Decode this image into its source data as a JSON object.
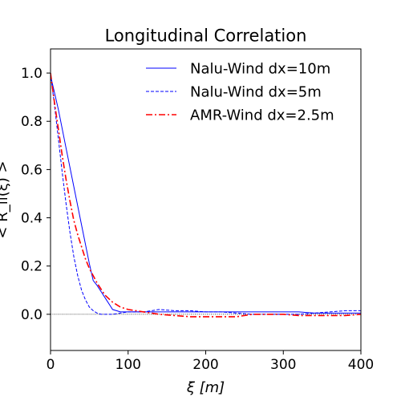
{
  "chart_data": {
    "type": "line",
    "title": "Longitudinal Correlation",
    "xlabel": "ξ [m]",
    "ylabel": "< R_ii(ξ) >",
    "xlim": [
      0,
      400
    ],
    "ylim": [
      -0.15,
      1.1
    ],
    "xticks": [
      0,
      100,
      200,
      300,
      400
    ],
    "yticks": [
      0.0,
      0.2,
      0.4,
      0.6,
      0.8,
      1.0
    ],
    "xtick_labels": [
      "0",
      "100",
      "200",
      "300",
      "400"
    ],
    "ytick_labels": [
      "0.0",
      "0.2",
      "0.4",
      "0.6",
      "0.8",
      "1.0"
    ],
    "reference_line": {
      "y": 0.0,
      "style": "dotted",
      "color": "#000000"
    },
    "legend": {
      "position": "top-right",
      "frame": false
    },
    "grid": false,
    "series": [
      {
        "name": "Nalu-Wind dx=10m",
        "color": "#0000ff",
        "style": "solid",
        "x": [
          0,
          10,
          20,
          30,
          40,
          50,
          55,
          60,
          70,
          80,
          90,
          100,
          120,
          140,
          160,
          180,
          200,
          220,
          240,
          260,
          280,
          300,
          320,
          340,
          360,
          380,
          400
        ],
        "y": [
          0.99,
          0.85,
          0.69,
          0.53,
          0.37,
          0.21,
          0.14,
          0.12,
          0.07,
          0.02,
          0.01,
          0.01,
          0.01,
          0.01,
          0.01,
          0.01,
          0.01,
          0.01,
          0.01,
          0.01,
          0.01,
          0.01,
          0.01,
          0.005,
          0.005,
          0.005,
          0.005
        ]
      },
      {
        "name": "Nalu-Wind dx=5m",
        "color": "#0000ff",
        "style": "dashed",
        "x": [
          0,
          5,
          10,
          15,
          20,
          25,
          30,
          35,
          40,
          45,
          50,
          55,
          60,
          65,
          70,
          75,
          80,
          90,
          100,
          120,
          140,
          160,
          180,
          200,
          220,
          240,
          260,
          280,
          300,
          320,
          340,
          360,
          380,
          400
        ],
        "y": [
          1.0,
          0.87,
          0.73,
          0.59,
          0.46,
          0.34,
          0.24,
          0.16,
          0.1,
          0.06,
          0.03,
          0.015,
          0.005,
          0.0,
          0.0,
          0.0,
          0.0,
          0.005,
          0.01,
          0.01,
          0.02,
          0.015,
          0.015,
          0.01,
          0.01,
          0.005,
          0.0,
          0.0,
          0.0,
          0.0,
          0.005,
          0.01,
          0.015,
          0.015
        ]
      },
      {
        "name": "AMR-Wind dx=2.5m",
        "color": "#ff0000",
        "style": "dashdot",
        "x": [
          0,
          5,
          10,
          15,
          20,
          25,
          30,
          35,
          40,
          45,
          50,
          60,
          70,
          80,
          90,
          100,
          110,
          120,
          140,
          160,
          180,
          200,
          220,
          240,
          260,
          280,
          300,
          320,
          340,
          360,
          380,
          400
        ],
        "y": [
          1.0,
          0.88,
          0.77,
          0.66,
          0.56,
          0.47,
          0.39,
          0.33,
          0.28,
          0.23,
          0.19,
          0.13,
          0.08,
          0.05,
          0.03,
          0.02,
          0.015,
          0.01,
          0.0,
          -0.005,
          -0.01,
          -0.01,
          -0.01,
          -0.01,
          0.0,
          0.0,
          0.0,
          -0.005,
          -0.005,
          -0.005,
          -0.005,
          0.0
        ]
      }
    ]
  }
}
